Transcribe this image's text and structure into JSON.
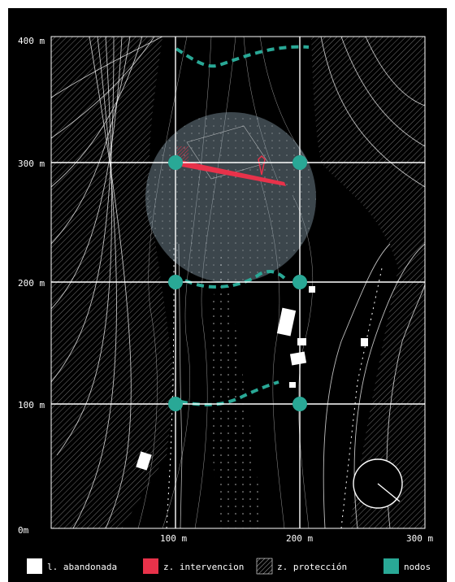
{
  "map": {
    "axis": {
      "y_labels": [
        "400 m",
        "300 m",
        "200 m",
        "100 m",
        "0m"
      ],
      "x_labels": [
        "100 m",
        "200 m",
        "300 m"
      ]
    }
  },
  "legend": {
    "items": [
      {
        "label": "l. abandonada",
        "swatch": "#ffffff",
        "kind": "solid"
      },
      {
        "label": "z. intervencion",
        "swatch": "#e8324a",
        "kind": "solid"
      },
      {
        "label": "z. protección",
        "swatch": "#000000",
        "kind": "hatch"
      },
      {
        "label": "nodos",
        "swatch": "#29a896",
        "kind": "solid"
      }
    ]
  },
  "colors": {
    "background": "#000000",
    "node": "#29a896",
    "intervention": "#e8324a",
    "circle_fill": "#8fa7b5"
  }
}
